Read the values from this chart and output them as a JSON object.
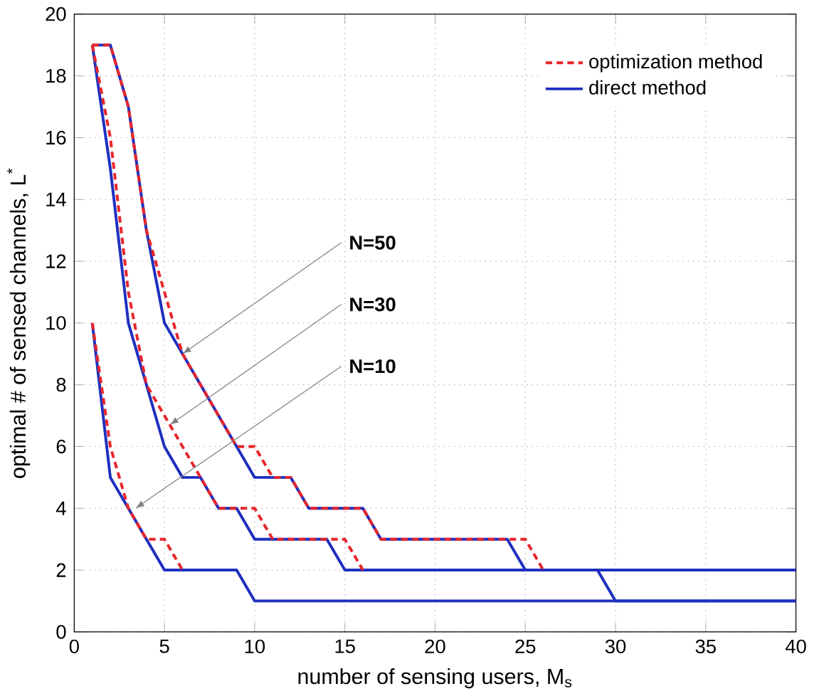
{
  "chart_data": {
    "type": "line",
    "xlabel": "number of sensing users, M$_{s}$",
    "ylabel": "optimal # of sensed channels, L$^{*}$",
    "xlim": [
      0,
      40
    ],
    "ylim": [
      0,
      20
    ],
    "xticks": [
      0,
      5,
      10,
      15,
      20,
      25,
      30,
      35,
      40
    ],
    "yticks": [
      0,
      2,
      4,
      6,
      8,
      10,
      12,
      14,
      16,
      18,
      20
    ],
    "grid": true,
    "legend": "top right",
    "marker": "none",
    "series": [
      {
        "name": "optimization method",
        "color": "#e8262b",
        "line_style": "dashed",
        "x": [
          1,
          2,
          3,
          4,
          5,
          6
        ],
        "values": [
          10,
          6,
          4,
          3,
          3,
          2
        ]
      },
      {
        "color": "#e8262b",
        "line_style": "dashed",
        "x": [
          1,
          2,
          3,
          4,
          5,
          6,
          7,
          8,
          9,
          10,
          11,
          14,
          15,
          16
        ],
        "values": [
          19,
          16,
          11,
          8,
          7,
          6,
          5,
          4,
          4,
          4,
          3,
          3,
          3,
          2
        ]
      },
      {
        "color": "#e8262b",
        "line_style": "dashed",
        "x": [
          1,
          2,
          3,
          4,
          5,
          6,
          7,
          8,
          9,
          10,
          11,
          12,
          13,
          16,
          17,
          24,
          25,
          26
        ],
        "values": [
          19,
          19,
          17,
          13,
          11,
          9,
          8,
          7,
          6,
          6,
          5,
          5,
          4,
          4,
          3,
          3,
          3,
          2
        ]
      },
      {
        "name": "direct method",
        "color": "#1f2fbf",
        "line_style": "solid",
        "x": [
          1,
          2,
          3,
          4,
          5,
          9,
          10,
          40
        ],
        "values": [
          10,
          5,
          4,
          3,
          2,
          2,
          1,
          1
        ]
      },
      {
        "color": "#1f2fbf",
        "line_style": "solid",
        "x": [
          1,
          2,
          3,
          4,
          5,
          6,
          7,
          8,
          9,
          10,
          14,
          15,
          29,
          30,
          40
        ],
        "values": [
          19,
          15,
          10,
          8,
          6,
          5,
          5,
          4,
          4,
          3,
          3,
          2,
          2,
          1,
          1
        ]
      },
      {
        "color": "#1f2fbf",
        "line_style": "solid",
        "x": [
          1,
          2,
          3,
          4,
          5,
          6,
          7,
          8,
          9,
          10,
          12,
          13,
          16,
          17,
          24,
          25,
          40
        ],
        "values": [
          19,
          19,
          17,
          13,
          10,
          9,
          8,
          7,
          6,
          5,
          5,
          4,
          4,
          3,
          3,
          2,
          2
        ]
      }
    ],
    "annotations": [
      {
        "text": "N=50",
        "x": 6,
        "y": 9
      },
      {
        "text": "N=30",
        "x": 5.3,
        "y": 6.7
      },
      {
        "text": "N=10",
        "x": 3.4,
        "y": 4
      }
    ]
  }
}
